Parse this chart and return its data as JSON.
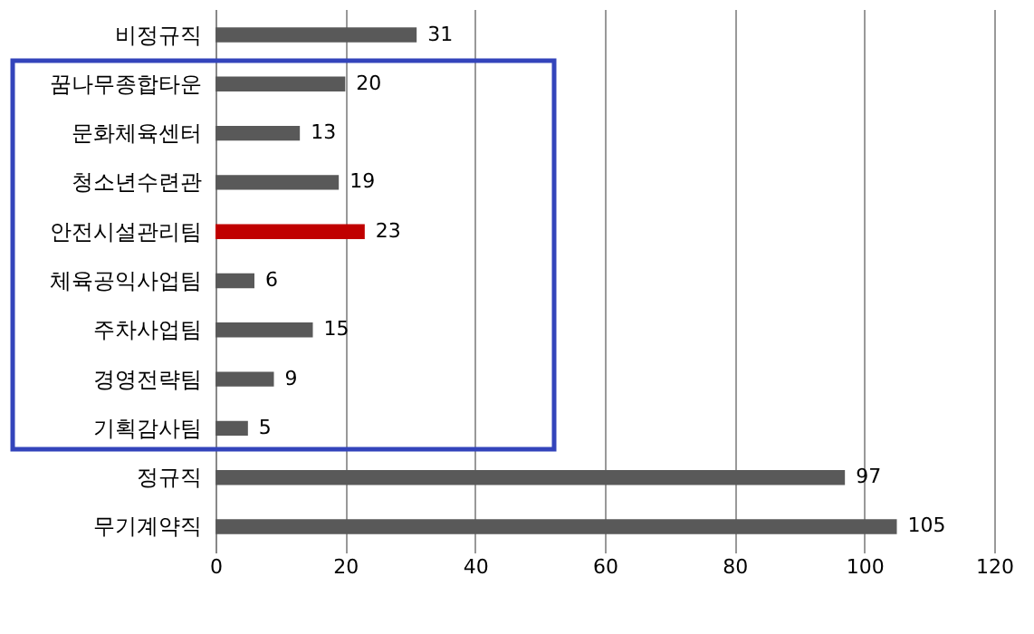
{
  "chart_data": {
    "type": "bar",
    "orientation": "horizontal",
    "categories": [
      "비정규직",
      "꿈나무종합타운",
      "문화체육센터",
      "청소년수련관",
      "안전시설관리팀",
      "체육공익사업팀",
      "주차사업팀",
      "경영전략팀",
      "기획감사팀",
      "정규직",
      "무기계약직"
    ],
    "values": [
      31,
      20,
      13,
      19,
      23,
      6,
      15,
      9,
      5,
      97,
      105
    ],
    "colors": [
      "#595959",
      "#595959",
      "#595959",
      "#595959",
      "#c00000",
      "#595959",
      "#595959",
      "#595959",
      "#595959",
      "#595959",
      "#595959"
    ],
    "xlim": [
      0,
      120
    ],
    "xticks": [
      0,
      20,
      40,
      60,
      80,
      100,
      120
    ],
    "grid": "x",
    "data_labels": true
  }
}
